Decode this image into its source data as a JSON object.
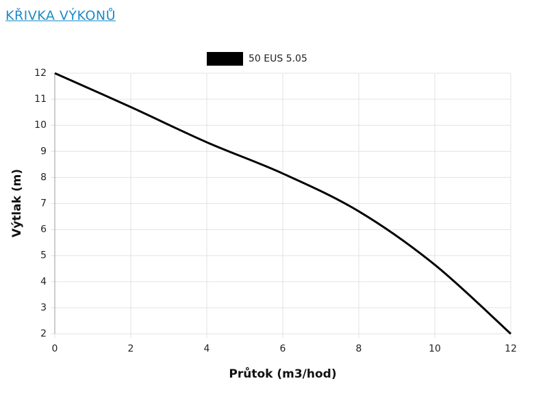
{
  "heading": "KŘIVKA VÝKONŮ",
  "chart_data": {
    "type": "line",
    "x_label": "Průtok (m3/hod)",
    "y_label": "Výtlak (m)",
    "x": [
      0,
      2,
      4,
      6,
      8,
      10,
      12
    ],
    "series": [
      {
        "name": "50 EUS 5.05",
        "color": "#000000",
        "values": [
          12,
          10.7,
          9.35,
          8.15,
          6.7,
          4.65,
          2
        ]
      }
    ],
    "xlim": [
      0,
      12
    ],
    "xticks": [
      0,
      2,
      4,
      6,
      8,
      10,
      12
    ],
    "ylim": [
      2,
      12
    ],
    "yticks": [
      2,
      3,
      4,
      5,
      6,
      7,
      8,
      9,
      10,
      11,
      12
    ],
    "grid": true,
    "legend": "top"
  }
}
